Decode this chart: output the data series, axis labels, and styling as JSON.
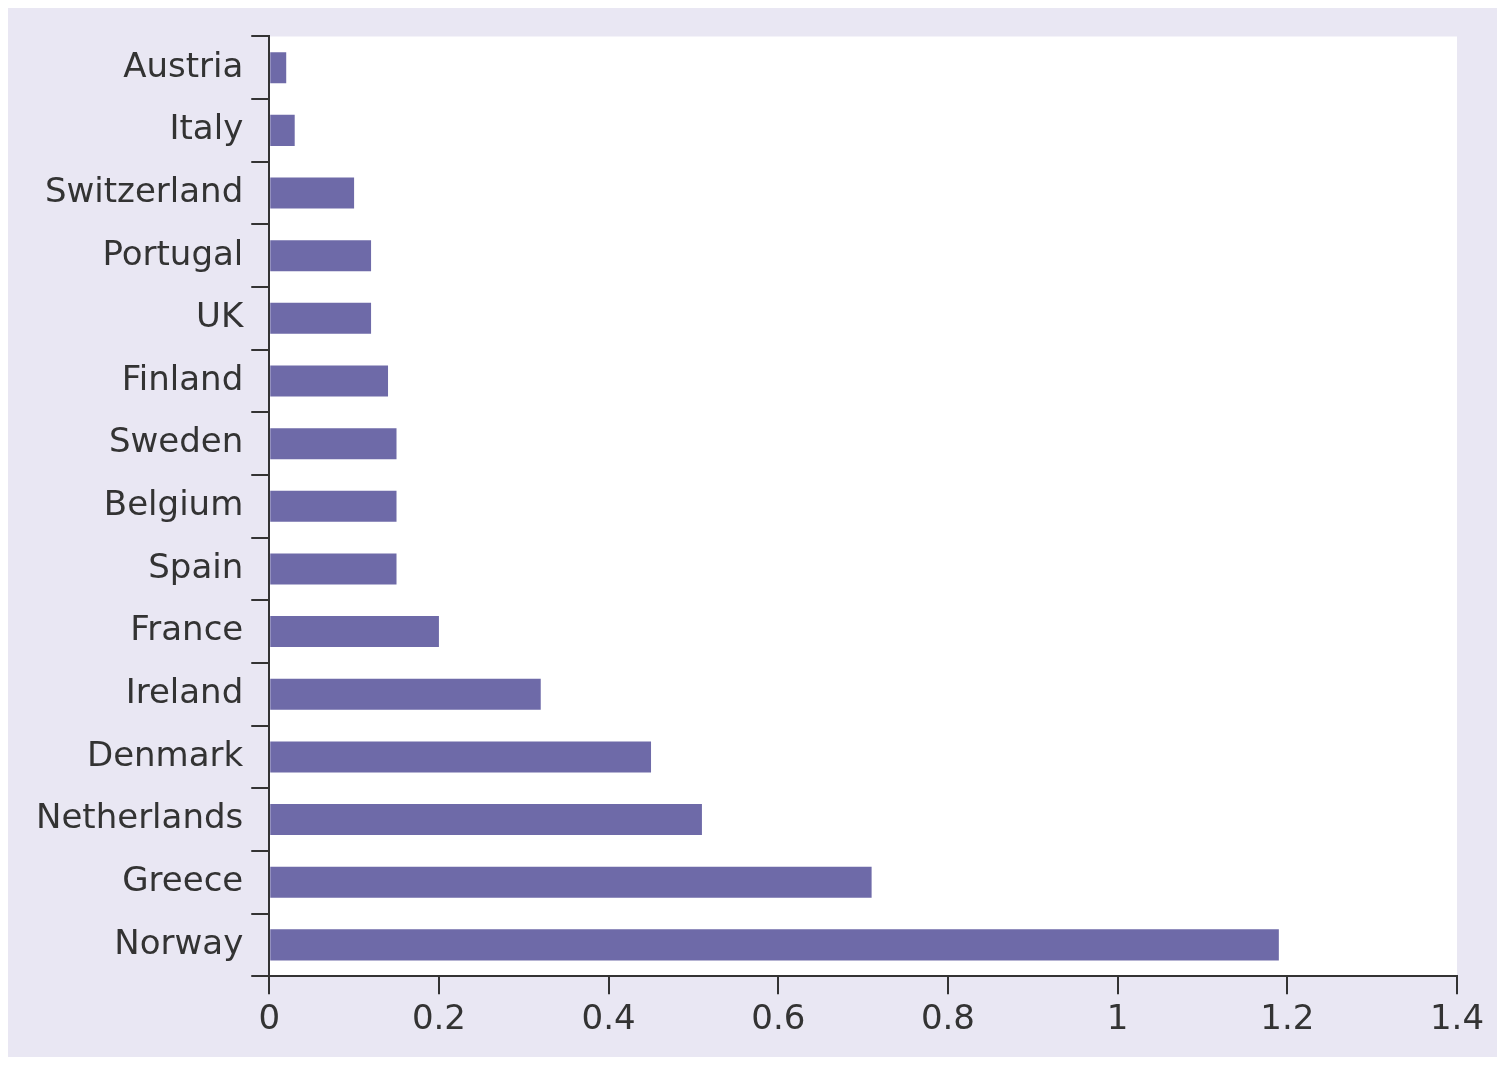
{
  "chart_data": {
    "type": "bar",
    "orientation": "horizontal",
    "categories": [
      "Austria",
      "Italy",
      "Switzerland",
      "Portugal",
      "UK",
      "Finland",
      "Sweden",
      "Belgium",
      "Spain",
      "France",
      "Ireland",
      "Denmark",
      "Netherlands",
      "Greece",
      "Norway"
    ],
    "values": [
      0.02,
      0.03,
      0.1,
      0.12,
      0.12,
      0.14,
      0.15,
      0.15,
      0.15,
      0.2,
      0.32,
      0.45,
      0.51,
      0.71,
      1.19
    ],
    "color": "#6e6aa8",
    "xlim": [
      0,
      1.4
    ],
    "xticks": [
      0,
      0.2,
      0.4,
      0.6,
      0.8,
      1,
      1.2,
      1.4
    ],
    "grid": false,
    "legend": false
  }
}
